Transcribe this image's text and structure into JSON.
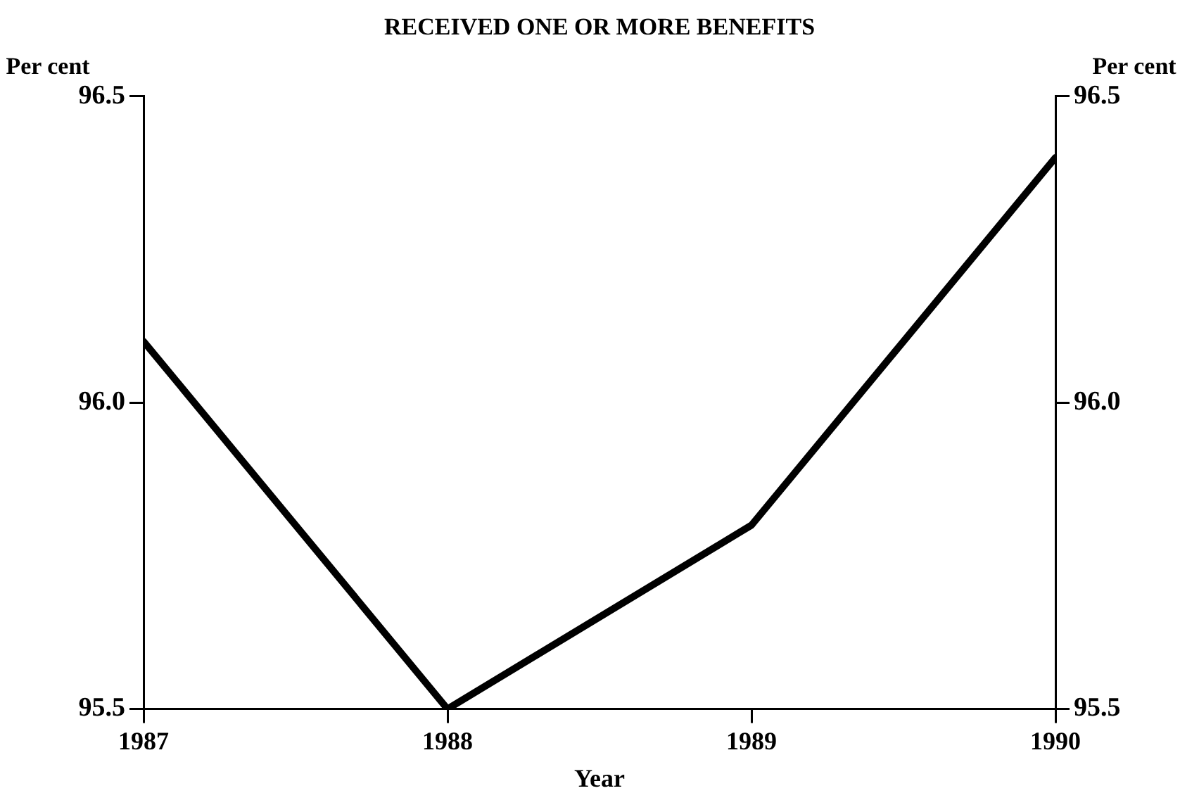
{
  "chart_data": {
    "type": "line",
    "title": "RECEIVED ONE OR MORE BENEFITS",
    "xlabel": "Year",
    "ylabel": "Per cent",
    "y2label": "Per cent",
    "x": [
      1987,
      1988,
      1989,
      1990
    ],
    "series": [
      {
        "color": "#000000",
        "values": [
          96.1,
          95.5,
          95.8,
          96.4
        ]
      }
    ],
    "xlim": [
      1987,
      1990
    ],
    "xticks": [
      1987,
      1988,
      1989,
      1990
    ],
    "ylim": [
      95.5,
      96.5
    ],
    "yticks": [
      {
        "value": 95.5,
        "label": "95.5"
      },
      {
        "value": 96,
        "label": "96.0"
      },
      {
        "value": 96.5,
        "label": "96.5"
      }
    ],
    "y2lim": [
      95.5,
      96.5
    ],
    "y2ticks": [
      {
        "value": 95.5,
        "label": "95.5"
      },
      {
        "value": 96,
        "label": "96.0"
      },
      {
        "value": 96.5,
        "label": "96.5"
      }
    ],
    "grid": false,
    "legend": false,
    "marker": "none",
    "line_style": "solid"
  }
}
